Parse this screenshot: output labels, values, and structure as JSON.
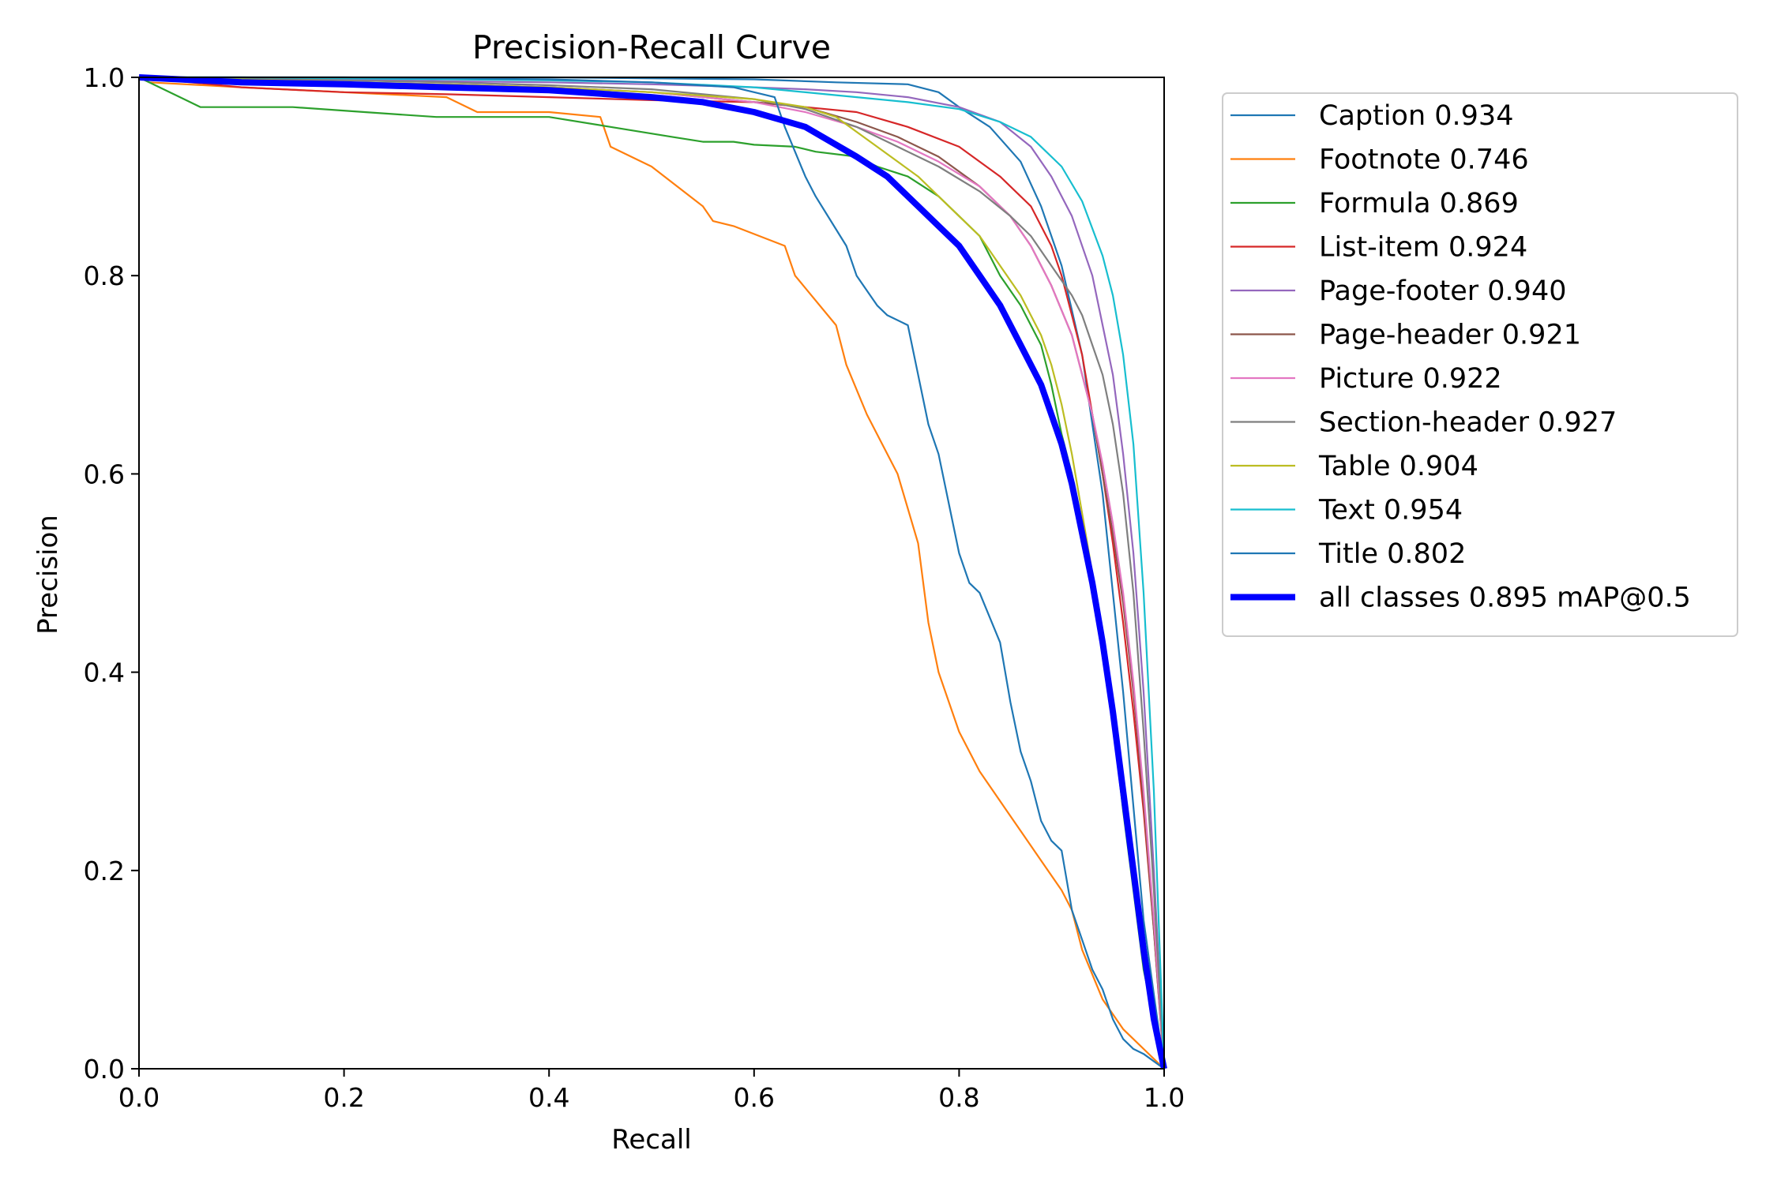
{
  "chart_data": {
    "type": "line",
    "title": "Precision-Recall Curve",
    "xlabel": "Recall",
    "ylabel": "Precision",
    "xlim": [
      0,
      1
    ],
    "ylim": [
      0,
      1
    ],
    "xticks": [
      "0.0",
      "0.2",
      "0.4",
      "0.6",
      "0.8",
      "1.0"
    ],
    "yticks": [
      "0.0",
      "0.2",
      "0.4",
      "0.6",
      "0.8",
      "1.0"
    ],
    "grid": false,
    "legend_placement": "outside-right-top",
    "series": [
      {
        "name": "Caption 0.934",
        "color": "#1f77b4",
        "width": "thin",
        "x": [
          0,
          0.1,
          0.2,
          0.3,
          0.4,
          0.5,
          0.6,
          0.68,
          0.75,
          0.78,
          0.8,
          0.83,
          0.86,
          0.88,
          0.9,
          0.92,
          0.94,
          0.96,
          0.98,
          1.0
        ],
        "y": [
          1.0,
          1.0,
          1.0,
          1.0,
          1.0,
          0.999,
          0.998,
          0.995,
          0.993,
          0.985,
          0.97,
          0.95,
          0.915,
          0.87,
          0.81,
          0.72,
          0.58,
          0.38,
          0.15,
          0.0
        ]
      },
      {
        "name": "Footnote 0.746",
        "color": "#ff7f0e",
        "width": "thin",
        "x": [
          0,
          0.01,
          0.1,
          0.3,
          0.33,
          0.4,
          0.45,
          0.46,
          0.5,
          0.55,
          0.56,
          0.58,
          0.63,
          0.64,
          0.68,
          0.69,
          0.71,
          0.74,
          0.76,
          0.77,
          0.78,
          0.8,
          0.82,
          0.84,
          0.86,
          0.88,
          0.9,
          0.91,
          0.92,
          0.94,
          0.96,
          1.0
        ],
        "y": [
          1.0,
          0.995,
          0.99,
          0.98,
          0.965,
          0.965,
          0.96,
          0.93,
          0.91,
          0.87,
          0.855,
          0.85,
          0.83,
          0.8,
          0.75,
          0.71,
          0.66,
          0.6,
          0.53,
          0.45,
          0.4,
          0.34,
          0.3,
          0.27,
          0.24,
          0.21,
          0.18,
          0.16,
          0.12,
          0.07,
          0.04,
          0.0
        ]
      },
      {
        "name": "Formula 0.869",
        "color": "#2ca02c",
        "width": "thin",
        "x": [
          0,
          0.02,
          0.06,
          0.15,
          0.22,
          0.29,
          0.4,
          0.46,
          0.52,
          0.55,
          0.58,
          0.6,
          0.64,
          0.66,
          0.7,
          0.72,
          0.75,
          0.78,
          0.8,
          0.82,
          0.84,
          0.86,
          0.88,
          0.89,
          0.9,
          0.91,
          0.92,
          0.93,
          0.94,
          0.95,
          0.96,
          0.97,
          0.98,
          1.0
        ],
        "y": [
          1.0,
          0.99,
          0.97,
          0.97,
          0.965,
          0.96,
          0.96,
          0.95,
          0.94,
          0.935,
          0.935,
          0.932,
          0.93,
          0.925,
          0.92,
          0.91,
          0.9,
          0.88,
          0.86,
          0.84,
          0.8,
          0.77,
          0.73,
          0.69,
          0.64,
          0.6,
          0.55,
          0.49,
          0.42,
          0.35,
          0.26,
          0.18,
          0.1,
          0.0
        ]
      },
      {
        "name": "List-item 0.924",
        "color": "#d62728",
        "width": "thin",
        "x": [
          0,
          0.1,
          0.2,
          0.3,
          0.4,
          0.5,
          0.6,
          0.65,
          0.7,
          0.75,
          0.8,
          0.84,
          0.87,
          0.89,
          0.9,
          0.91,
          0.92,
          0.93,
          0.94,
          0.95,
          0.96,
          0.97,
          0.98,
          0.99,
          1.0
        ],
        "y": [
          1.0,
          0.99,
          0.985,
          0.983,
          0.98,
          0.977,
          0.975,
          0.97,
          0.965,
          0.95,
          0.93,
          0.9,
          0.87,
          0.83,
          0.8,
          0.76,
          0.72,
          0.66,
          0.6,
          0.53,
          0.45,
          0.36,
          0.26,
          0.14,
          0.0
        ]
      },
      {
        "name": "Page-footer 0.940",
        "color": "#9467bd",
        "width": "thin",
        "x": [
          0,
          0.1,
          0.2,
          0.3,
          0.4,
          0.5,
          0.6,
          0.65,
          0.7,
          0.75,
          0.8,
          0.84,
          0.87,
          0.89,
          0.91,
          0.93,
          0.94,
          0.95,
          0.96,
          0.97,
          0.98,
          0.99,
          1.0
        ],
        "y": [
          1.0,
          1.0,
          0.998,
          0.996,
          0.995,
          0.993,
          0.99,
          0.988,
          0.985,
          0.98,
          0.97,
          0.955,
          0.93,
          0.9,
          0.86,
          0.8,
          0.75,
          0.7,
          0.62,
          0.52,
          0.38,
          0.2,
          0.0
        ]
      },
      {
        "name": "Page-header 0.921",
        "color": "#8c564b",
        "width": "thin",
        "x": [
          0,
          0.1,
          0.2,
          0.3,
          0.4,
          0.5,
          0.6,
          0.65,
          0.7,
          0.74,
          0.78,
          0.82,
          0.85,
          0.87,
          0.89,
          0.91,
          0.92,
          0.93,
          0.94,
          0.95,
          0.96,
          0.97,
          0.98,
          0.99,
          1.0
        ],
        "y": [
          1.0,
          0.998,
          0.995,
          0.993,
          0.99,
          0.985,
          0.975,
          0.97,
          0.955,
          0.94,
          0.92,
          0.89,
          0.86,
          0.83,
          0.79,
          0.74,
          0.7,
          0.66,
          0.6,
          0.54,
          0.47,
          0.38,
          0.27,
          0.14,
          0.0
        ]
      },
      {
        "name": "Picture 0.922",
        "color": "#e377c2",
        "width": "thin",
        "x": [
          0,
          0.1,
          0.2,
          0.3,
          0.4,
          0.5,
          0.6,
          0.65,
          0.7,
          0.74,
          0.78,
          0.82,
          0.85,
          0.87,
          0.89,
          0.91,
          0.92,
          0.93,
          0.94,
          0.95,
          0.96,
          0.97,
          0.98,
          0.99,
          1.0
        ],
        "y": [
          1.0,
          0.998,
          0.995,
          0.993,
          0.99,
          0.985,
          0.975,
          0.965,
          0.95,
          0.935,
          0.915,
          0.89,
          0.86,
          0.83,
          0.79,
          0.74,
          0.7,
          0.66,
          0.61,
          0.55,
          0.48,
          0.39,
          0.28,
          0.15,
          0.0
        ]
      },
      {
        "name": "Section-header 0.927",
        "color": "#7f7f7f",
        "width": "thin",
        "x": [
          0,
          0.1,
          0.2,
          0.3,
          0.4,
          0.5,
          0.6,
          0.65,
          0.7,
          0.74,
          0.78,
          0.82,
          0.85,
          0.87,
          0.89,
          0.91,
          0.92,
          0.93,
          0.94,
          0.95,
          0.96,
          0.97,
          0.98,
          0.99,
          1.0
        ],
        "y": [
          1.0,
          0.999,
          0.997,
          0.995,
          0.992,
          0.988,
          0.978,
          0.968,
          0.95,
          0.93,
          0.91,
          0.885,
          0.86,
          0.84,
          0.81,
          0.78,
          0.76,
          0.73,
          0.7,
          0.65,
          0.58,
          0.48,
          0.34,
          0.18,
          0.0
        ]
      },
      {
        "name": "Table 0.904",
        "color": "#bcbd22",
        "width": "thin",
        "x": [
          0,
          0.1,
          0.2,
          0.3,
          0.4,
          0.5,
          0.6,
          0.65,
          0.68,
          0.72,
          0.76,
          0.79,
          0.82,
          0.84,
          0.86,
          0.88,
          0.89,
          0.9,
          0.91,
          0.92,
          0.93,
          0.94,
          0.95,
          0.96,
          0.97,
          0.98,
          0.99,
          1.0
        ],
        "y": [
          1.0,
          0.998,
          0.995,
          0.993,
          0.99,
          0.985,
          0.978,
          0.97,
          0.96,
          0.93,
          0.9,
          0.87,
          0.84,
          0.81,
          0.78,
          0.74,
          0.71,
          0.67,
          0.62,
          0.56,
          0.5,
          0.43,
          0.36,
          0.28,
          0.2,
          0.12,
          0.05,
          0.0
        ]
      },
      {
        "name": "Text 0.954",
        "color": "#17becf",
        "width": "thin",
        "x": [
          0,
          0.1,
          0.2,
          0.3,
          0.4,
          0.5,
          0.6,
          0.7,
          0.75,
          0.8,
          0.84,
          0.87,
          0.9,
          0.92,
          0.94,
          0.95,
          0.96,
          0.97,
          0.98,
          0.99,
          1.0
        ],
        "y": [
          1.0,
          1.0,
          0.999,
          0.998,
          0.997,
          0.995,
          0.99,
          0.98,
          0.975,
          0.968,
          0.955,
          0.94,
          0.91,
          0.875,
          0.82,
          0.78,
          0.72,
          0.63,
          0.48,
          0.28,
          0.0
        ]
      },
      {
        "name": "Title 0.802",
        "color": "#1f77b4",
        "width": "thin",
        "x": [
          0,
          0.2,
          0.4,
          0.5,
          0.58,
          0.62,
          0.63,
          0.65,
          0.66,
          0.69,
          0.7,
          0.72,
          0.73,
          0.75,
          0.76,
          0.77,
          0.78,
          0.79,
          0.8,
          0.81,
          0.82,
          0.84,
          0.85,
          0.86,
          0.87,
          0.88,
          0.89,
          0.9,
          0.91,
          0.92,
          0.93,
          0.94,
          0.95,
          0.96,
          0.97,
          0.98,
          1.0
        ],
        "y": [
          1.0,
          1.0,
          0.998,
          0.995,
          0.99,
          0.98,
          0.95,
          0.9,
          0.88,
          0.83,
          0.8,
          0.77,
          0.76,
          0.75,
          0.7,
          0.65,
          0.62,
          0.57,
          0.52,
          0.49,
          0.48,
          0.43,
          0.37,
          0.32,
          0.29,
          0.25,
          0.23,
          0.22,
          0.16,
          0.13,
          0.1,
          0.08,
          0.05,
          0.03,
          0.02,
          0.015,
          0.0
        ]
      },
      {
        "name": "all classes 0.895 mAP@0.5",
        "color": "#0000ff",
        "width": "thick",
        "x": [
          0,
          0.1,
          0.2,
          0.3,
          0.4,
          0.5,
          0.55,
          0.6,
          0.65,
          0.7,
          0.73,
          0.76,
          0.78,
          0.8,
          0.82,
          0.84,
          0.86,
          0.88,
          0.89,
          0.9,
          0.91,
          0.92,
          0.93,
          0.94,
          0.95,
          0.96,
          0.97,
          0.98,
          0.99,
          1.0
        ],
        "y": [
          1.0,
          0.995,
          0.993,
          0.99,
          0.987,
          0.98,
          0.975,
          0.965,
          0.95,
          0.92,
          0.9,
          0.87,
          0.85,
          0.83,
          0.8,
          0.77,
          0.73,
          0.69,
          0.66,
          0.63,
          0.59,
          0.54,
          0.49,
          0.43,
          0.36,
          0.28,
          0.2,
          0.12,
          0.05,
          0.0
        ]
      }
    ]
  }
}
